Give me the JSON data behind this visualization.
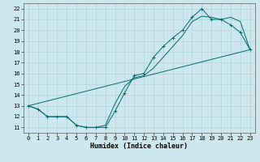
{
  "xlabel": "Humidex (Indice chaleur)",
  "background_color": "#cce8ee",
  "line_color": "#006b6b",
  "xlim": [
    -0.5,
    23.5
  ],
  "ylim": [
    10.5,
    22.5
  ],
  "xticks": [
    0,
    1,
    2,
    3,
    4,
    5,
    6,
    7,
    8,
    9,
    10,
    11,
    12,
    13,
    14,
    15,
    16,
    17,
    18,
    19,
    20,
    21,
    22,
    23
  ],
  "yticks": [
    11,
    12,
    13,
    14,
    15,
    16,
    17,
    18,
    19,
    20,
    21,
    22
  ],
  "series1_x": [
    0,
    1,
    2,
    3,
    4,
    5,
    6,
    7,
    8,
    9,
    10,
    11,
    12,
    13,
    14,
    15,
    16,
    17,
    18,
    19,
    20,
    21,
    22,
    23
  ],
  "series1_y": [
    13,
    12.7,
    12,
    12,
    12,
    11.2,
    11,
    11,
    11,
    12.5,
    14.2,
    15.8,
    16,
    17.5,
    18.5,
    19.3,
    20,
    21.2,
    22,
    21,
    21,
    20.5,
    19.8,
    18.2
  ],
  "series2_x": [
    0,
    1,
    2,
    3,
    4,
    5,
    6,
    7,
    8,
    9,
    10,
    11,
    12,
    13,
    14,
    15,
    16,
    17,
    18,
    19,
    20,
    21,
    22,
    23
  ],
  "series2_y": [
    13,
    12.7,
    12,
    12,
    12,
    11.2,
    11,
    11,
    11.2,
    13.2,
    14.8,
    15.6,
    15.8,
    16.5,
    17.5,
    18.5,
    19.5,
    20.8,
    21.3,
    21.2,
    21.0,
    21.2,
    20.8,
    18.2
  ],
  "series3_x": [
    0,
    23
  ],
  "series3_y": [
    13,
    18.2
  ],
  "grid_color": "#aaccd4",
  "tick_fontsize": 5,
  "xlabel_fontsize": 6
}
